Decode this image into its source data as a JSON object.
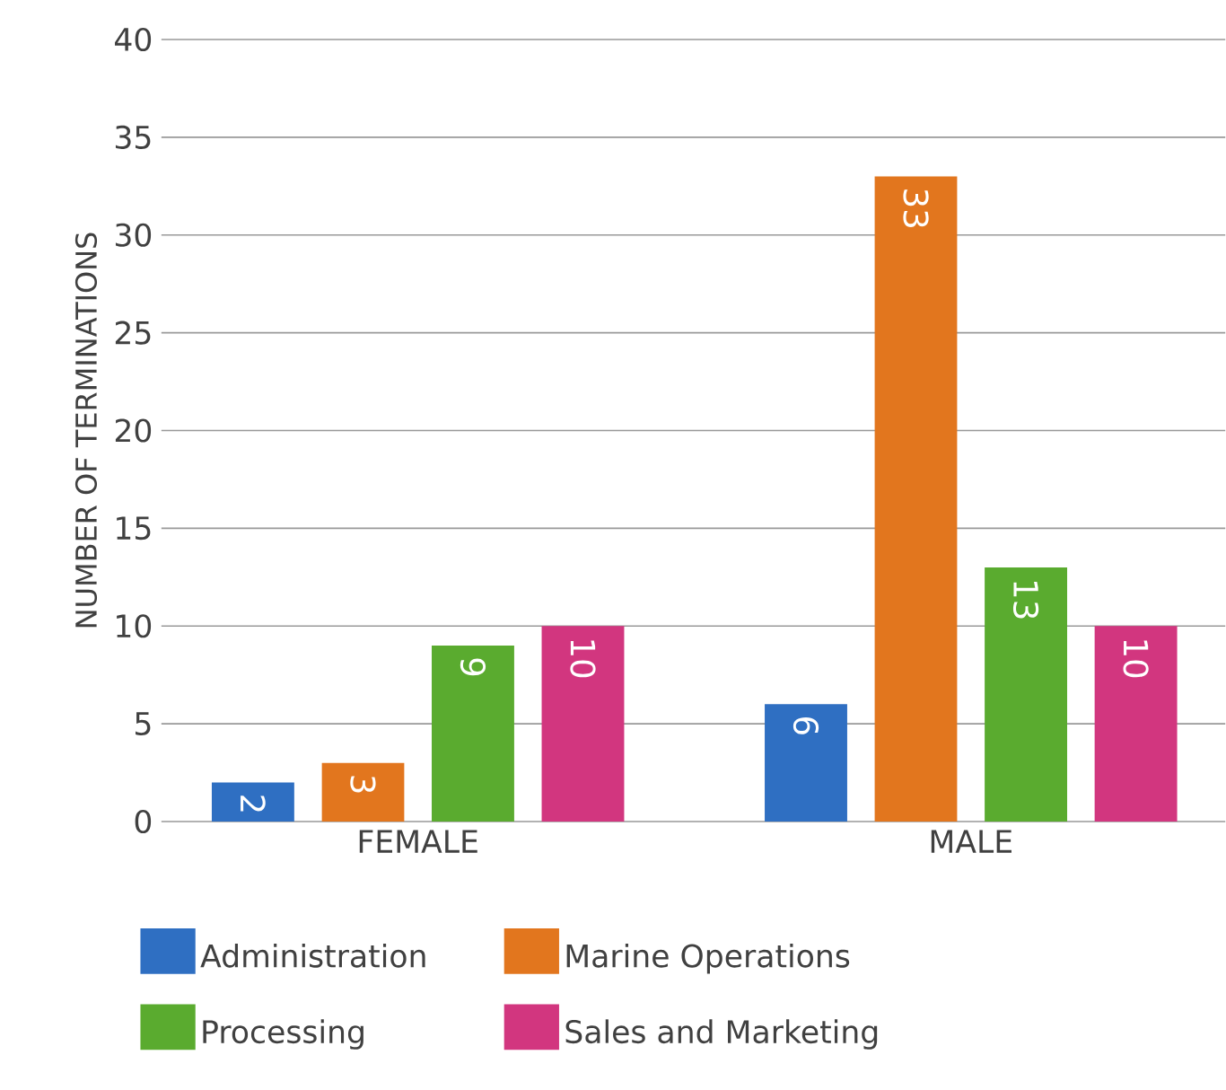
{
  "chart_data": {
    "type": "bar",
    "ylabel": "NUMBER OF TERMINATIONS",
    "categories": [
      "FEMALE",
      "MALE"
    ],
    "series": [
      {
        "name": "Administration",
        "color": "#2f6fc2",
        "values": [
          2,
          6
        ]
      },
      {
        "name": "Marine Operations",
        "color": "#e2761e",
        "values": [
          3,
          33
        ]
      },
      {
        "name": "Processing",
        "color": "#5aab2f",
        "values": [
          9,
          13
        ]
      },
      {
        "name": "Sales and Marketing",
        "color": "#d2367f",
        "values": [
          10,
          10
        ]
      }
    ],
    "ylim": [
      0,
      40
    ],
    "yticks": [
      0,
      5,
      10,
      15,
      20,
      25,
      30,
      35,
      40
    ],
    "grid": "y",
    "legend": "bottom",
    "data_labels": true
  }
}
